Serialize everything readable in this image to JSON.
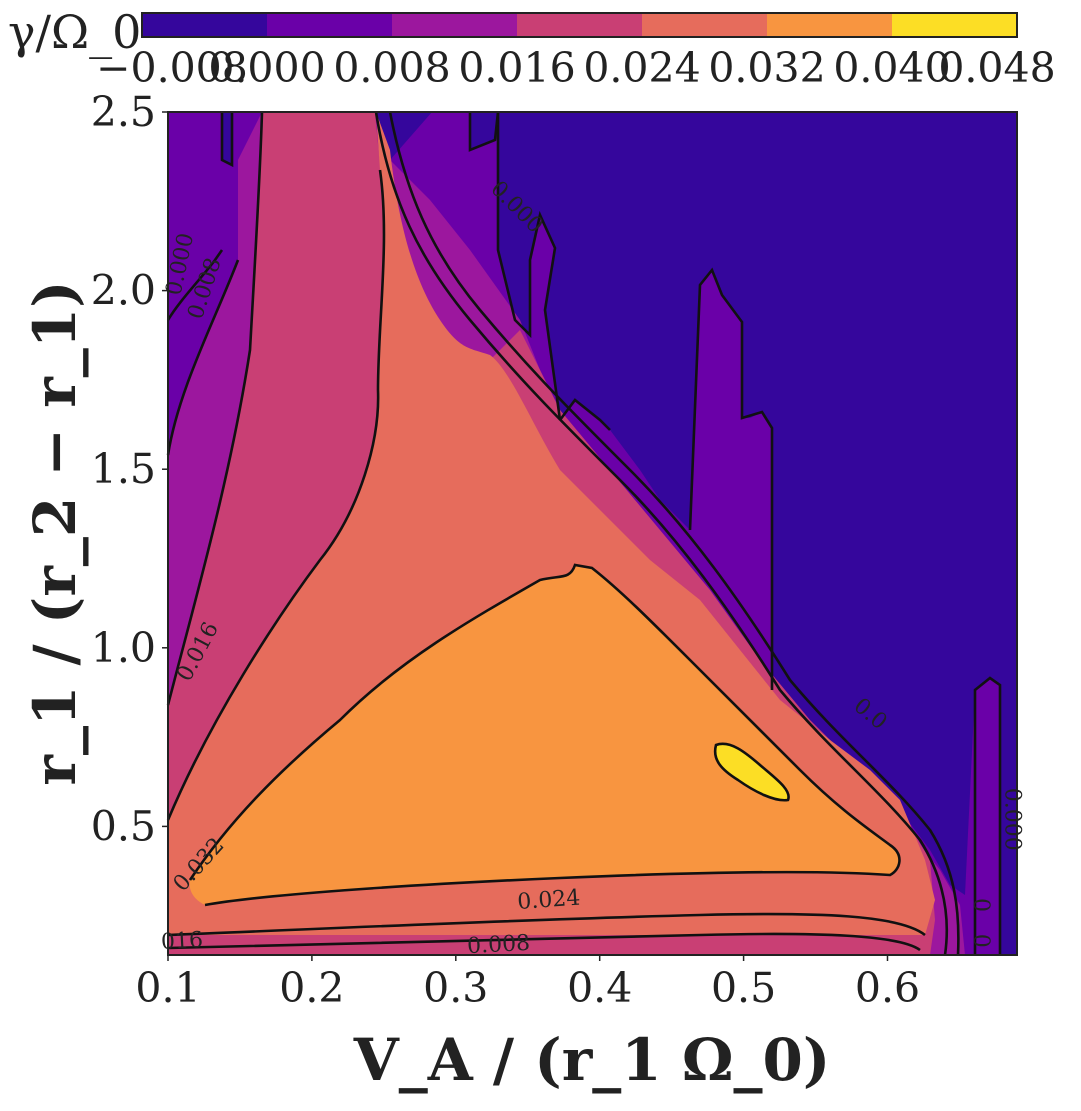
{
  "chart_data": {
    "type": "contour",
    "xlabel": "V_A / (r_1 Ω_0)",
    "ylabel": "r_1 / (r_2 − r_1)",
    "colorbar_label": "γ/Ω_0",
    "xlim": [
      0.1,
      0.69
    ],
    "ylim": [
      0.14,
      2.5
    ],
    "x_ticks": [
      "0.1",
      "0.2",
      "0.3",
      "0.4",
      "0.5",
      "0.6"
    ],
    "x_tick_values": [
      0.1,
      0.2,
      0.3,
      0.4,
      0.5,
      0.6
    ],
    "y_ticks": [
      "0.5",
      "1.0",
      "1.5",
      "2.0",
      "2.5"
    ],
    "y_tick_values": [
      0.5,
      1.0,
      1.5,
      2.0,
      2.5
    ],
    "levels": [
      -0.008,
      0.0,
      0.008,
      0.016,
      0.024,
      0.032,
      0.04,
      0.048
    ],
    "colorbar_ticks": [
      "−0.008",
      "0.000",
      "0.008",
      "0.016",
      "0.024",
      "0.032",
      "0.040",
      "0.048"
    ],
    "colorbar_colors": [
      "#35069c",
      "#6a00a8",
      "#9c179e",
      "#c93f74",
      "#e66c5c",
      "#f89540",
      "#fcde25"
    ],
    "contour_labels": [
      {
        "text": "0.000",
        "x": 0.113,
        "y": 2.07
      },
      {
        "text": "0.008",
        "x": 0.13,
        "y": 2.0
      },
      {
        "text": "0.016",
        "x": 0.125,
        "y": 0.98
      },
      {
        "text": "0.032",
        "x": 0.125,
        "y": 0.38
      },
      {
        "text": "0.024",
        "x": 0.365,
        "y": 0.275
      },
      {
        "text": "0.008",
        "x": 0.33,
        "y": 0.15
      },
      {
        "text": "016",
        "x": 0.11,
        "y": 0.16
      },
      {
        "text": "0.000",
        "x": 0.339,
        "y": 2.22
      },
      {
        "text": "0.000",
        "x": 0.682,
        "y": 0.52
      },
      {
        "text": "0.0",
        "x": 0.585,
        "y": 0.8
      },
      {
        "text": "0",
        "x": 0.66,
        "y": 0.28
      },
      {
        "text": "0",
        "x": 0.66,
        "y": 0.18
      }
    ]
  }
}
